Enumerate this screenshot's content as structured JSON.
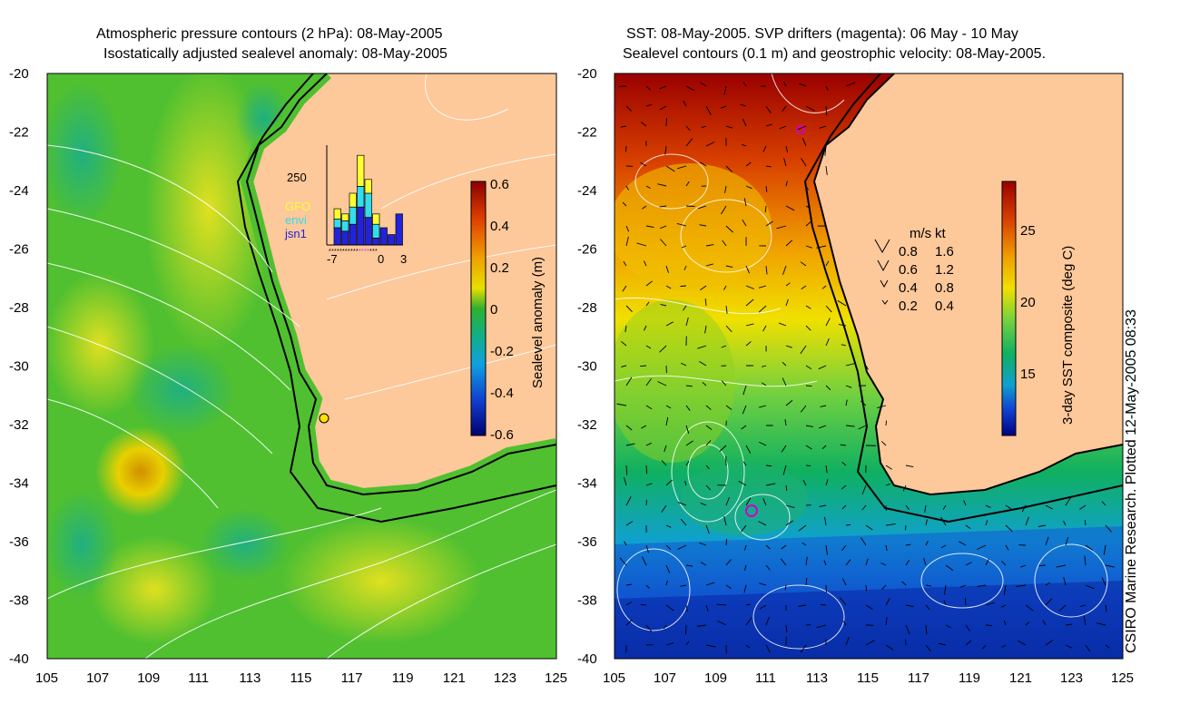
{
  "left_panel": {
    "title_line1": "Atmospheric pressure contours (2 hPa): 08-May-2005",
    "title_line2": "Isostatically adjusted sealevel anomaly: 08-May-2005",
    "colorbar": {
      "label": "Sealevel anomaly (m)",
      "ticks": [
        "0.6",
        "0.4",
        "0.2",
        "0",
        "-0.2",
        "-0.4",
        "-0.6"
      ],
      "range": [
        -0.6,
        0.6
      ]
    },
    "histogram": {
      "ymax_label": "250",
      "x_ticks": [
        "-7",
        "0",
        "3"
      ],
      "legend": [
        {
          "name": "GFO",
          "color": "#ffff33"
        },
        {
          "name": "envi",
          "color": "#33ddee"
        },
        {
          "name": "jsn1",
          "color": "#2222dd"
        }
      ],
      "bars": [
        {
          "day": -6.5,
          "gfo": 30,
          "envi": 25,
          "jsn1": 50
        },
        {
          "day": -5.5,
          "gfo": 20,
          "envi": 30,
          "jsn1": 40
        },
        {
          "day": -4.5,
          "gfo": 40,
          "envi": 50,
          "jsn1": 60
        },
        {
          "day": -3.5,
          "gfo": 90,
          "envi": 60,
          "jsn1": 110
        },
        {
          "day": -2.5,
          "gfo": 40,
          "envi": 70,
          "jsn1": 80
        },
        {
          "day": -1.5,
          "gfo": 30,
          "envi": 40,
          "jsn1": 20
        },
        {
          "day": -0.5,
          "gfo": 0,
          "envi": 0,
          "jsn1": 50
        },
        {
          "day": 0.5,
          "gfo": 0,
          "envi": 0,
          "jsn1": 30
        },
        {
          "day": 1.5,
          "gfo": 0,
          "envi": 0,
          "jsn1": 90
        }
      ]
    }
  },
  "right_panel": {
    "title_line1": "SST: 08-May-2005. SVP drifters (magenta): 06 May - 10 May",
    "title_line2": "Sealevel contours (0.1 m) and geostrophic velocity: 08-May-2005.",
    "colorbar": {
      "label": "3-day SST composite (deg C)",
      "ticks": [
        "25",
        "20",
        "15"
      ],
      "range": [
        11,
        28
      ]
    },
    "velocity_legend": {
      "header_ms": "m/s",
      "header_kt": "kt",
      "rows": [
        {
          "ms": "0.8",
          "kt": "1.6"
        },
        {
          "ms": "0.6",
          "kt": "1.2"
        },
        {
          "ms": "0.4",
          "kt": "0.8"
        },
        {
          "ms": "0.2",
          "kt": "0.4"
        }
      ]
    }
  },
  "axes": {
    "lat_labels": [
      "-20",
      "-22",
      "-24",
      "-26",
      "-28",
      "-30",
      "-32",
      "-34",
      "-36",
      "-38",
      "-40"
    ],
    "lon_labels": [
      "105",
      "107",
      "109",
      "111",
      "113",
      "115",
      "117",
      "119",
      "121",
      "123",
      "125"
    ],
    "lat_range": [
      -40,
      -20
    ],
    "lon_range": [
      105,
      125
    ]
  },
  "credit": "CSIRO Marine Research. Plotted 12-May-2005 08:33",
  "colors": {
    "land": "#fdc89a",
    "coast": "#000000",
    "contour": "#ffffff"
  }
}
